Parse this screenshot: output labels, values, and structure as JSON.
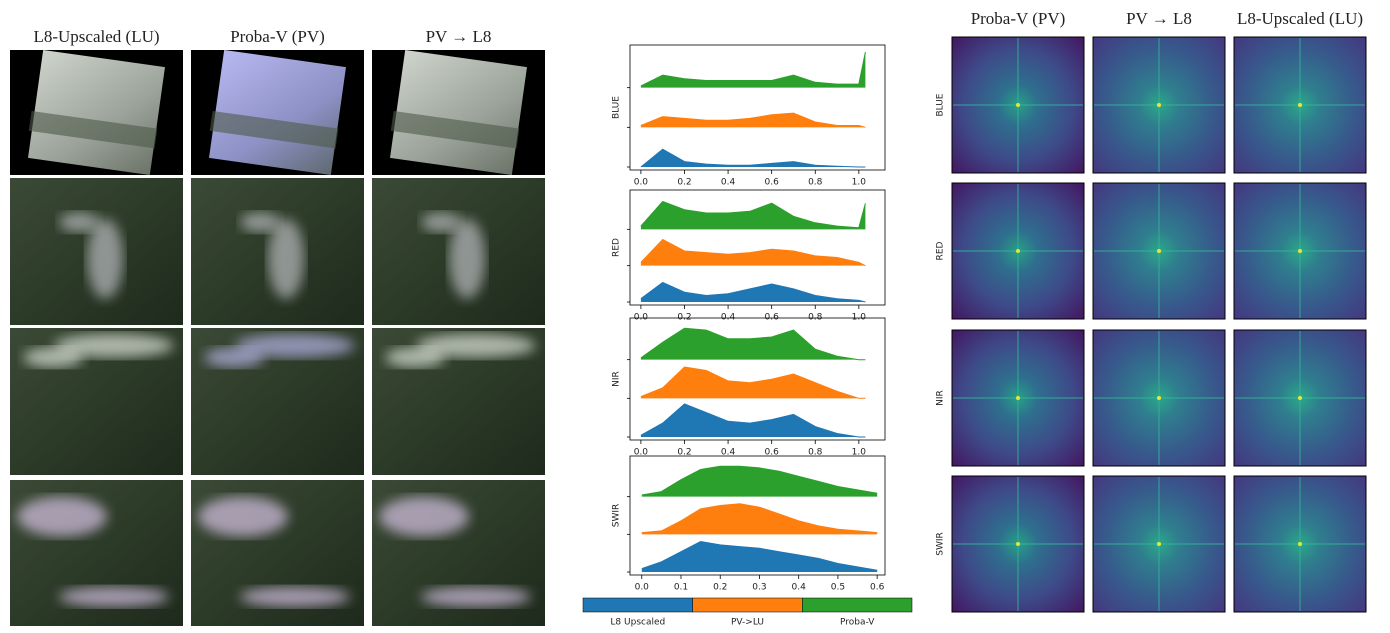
{
  "image_panel": {
    "columns": [
      "L8-Upscaled (LU)",
      "Proba-V (PV)",
      "PV → L8"
    ]
  },
  "spectrum_panel": {
    "columns": [
      "Proba-V (PV)",
      "PV → L8",
      "L8-Upscaled (LU)"
    ],
    "rows": [
      "BLUE",
      "RED",
      "NIR",
      "SWIR"
    ]
  },
  "chart_data": [
    {
      "type": "ridge",
      "ylabel": "BLUE",
      "x": [
        0,
        0.1,
        0.2,
        0.3,
        0.4,
        0.5,
        0.6,
        0.7,
        0.8,
        0.9,
        1.0,
        1.03
      ],
      "xlim": [
        -0.05,
        1.12
      ],
      "xticks": [
        {
          "value": 0,
          "label": "0.0"
        },
        0.2,
        0.4,
        0.6,
        0.8,
        {
          "value": 1,
          "label": "1.0"
        }
      ],
      "series": [
        {
          "name": "L8 Upscaled",
          "color": "#1f77b4",
          "values": [
            0,
            0.5,
            0.15,
            0.08,
            0.05,
            0.05,
            0.1,
            0.15,
            0.05,
            0.02,
            0,
            0
          ]
        },
        {
          "name": "PV->LU",
          "color": "#ff7f0e",
          "values": [
            0.05,
            0.3,
            0.25,
            0.2,
            0.2,
            0.25,
            0.35,
            0.4,
            0.15,
            0.05,
            0.05,
            0
          ]
        },
        {
          "name": "Proba-V",
          "color": "#2ca02c",
          "values": [
            0.05,
            0.35,
            0.25,
            0.2,
            0.2,
            0.2,
            0.2,
            0.35,
            0.15,
            0.1,
            0.1,
            1.0
          ]
        }
      ]
    },
    {
      "type": "ridge",
      "ylabel": "RED",
      "x": [
        0,
        0.1,
        0.2,
        0.3,
        0.4,
        0.5,
        0.6,
        0.7,
        0.8,
        0.9,
        1.0,
        1.03
      ],
      "xlim": [
        -0.05,
        1.12
      ],
      "xticks": [
        {
          "value": 0,
          "label": "0.0"
        },
        0.2,
        0.4,
        0.6,
        0.8,
        {
          "value": 1,
          "label": "1.0"
        }
      ],
      "series": [
        {
          "name": "L8 Upscaled",
          "color": "#1f77b4",
          "values": [
            0.1,
            0.6,
            0.3,
            0.2,
            0.25,
            0.4,
            0.55,
            0.4,
            0.2,
            0.1,
            0.05,
            0
          ]
        },
        {
          "name": "PV->LU",
          "color": "#ff7f0e",
          "values": [
            0.1,
            0.8,
            0.45,
            0.4,
            0.35,
            0.4,
            0.5,
            0.45,
            0.3,
            0.25,
            0.1,
            0
          ]
        },
        {
          "name": "Proba-V",
          "color": "#2ca02c",
          "values": [
            0.1,
            0.85,
            0.6,
            0.5,
            0.5,
            0.55,
            0.8,
            0.4,
            0.2,
            0.1,
            0.05,
            0.8
          ]
        }
      ]
    },
    {
      "type": "ridge",
      "ylabel": "NIR",
      "x": [
        0,
        0.1,
        0.2,
        0.3,
        0.4,
        0.5,
        0.6,
        0.7,
        0.8,
        0.9,
        1.0,
        1.03
      ],
      "xlim": [
        -0.05,
        1.12
      ],
      "xticks": [
        {
          "value": 0,
          "label": "0.0"
        },
        0.2,
        0.4,
        0.6,
        0.8,
        {
          "value": 1,
          "label": "1.0"
        }
      ],
      "series": [
        {
          "name": "L8 Upscaled",
          "color": "#1f77b4",
          "values": [
            0.05,
            0.4,
            0.95,
            0.7,
            0.45,
            0.4,
            0.5,
            0.65,
            0.3,
            0.1,
            0,
            0
          ]
        },
        {
          "name": "PV->LU",
          "color": "#ff7f0e",
          "values": [
            0.05,
            0.3,
            0.9,
            0.8,
            0.5,
            0.45,
            0.55,
            0.7,
            0.45,
            0.2,
            0,
            0
          ]
        },
        {
          "name": "Proba-V",
          "color": "#2ca02c",
          "values": [
            0.05,
            0.5,
            0.9,
            0.85,
            0.6,
            0.6,
            0.65,
            0.85,
            0.3,
            0.1,
            0,
            0
          ]
        }
      ]
    },
    {
      "type": "ridge",
      "ylabel": "SWIR",
      "x": [
        0,
        0.05,
        0.1,
        0.15,
        0.2,
        0.25,
        0.3,
        0.35,
        0.4,
        0.45,
        0.5,
        0.55,
        0.6
      ],
      "xlim": [
        -0.03,
        0.62
      ],
      "xticks": [
        {
          "value": 0,
          "label": "0.0"
        },
        0.1,
        0.2,
        0.3,
        0.4,
        0.5,
        0.6
      ],
      "series": [
        {
          "name": "L8 Upscaled",
          "color": "#1f77b4",
          "values": [
            0.1,
            0.3,
            0.6,
            0.9,
            0.8,
            0.75,
            0.7,
            0.6,
            0.5,
            0.4,
            0.25,
            0.15,
            0.05
          ]
        },
        {
          "name": "PV->LU",
          "color": "#ff7f0e",
          "values": [
            0.05,
            0.1,
            0.4,
            0.75,
            0.85,
            0.9,
            0.8,
            0.6,
            0.4,
            0.25,
            0.15,
            0.1,
            0.05
          ]
        },
        {
          "name": "Proba-V",
          "color": "#2ca02c",
          "values": [
            0.05,
            0.15,
            0.5,
            0.8,
            0.9,
            0.9,
            0.85,
            0.75,
            0.6,
            0.45,
            0.3,
            0.2,
            0.1
          ]
        }
      ]
    }
  ]
}
